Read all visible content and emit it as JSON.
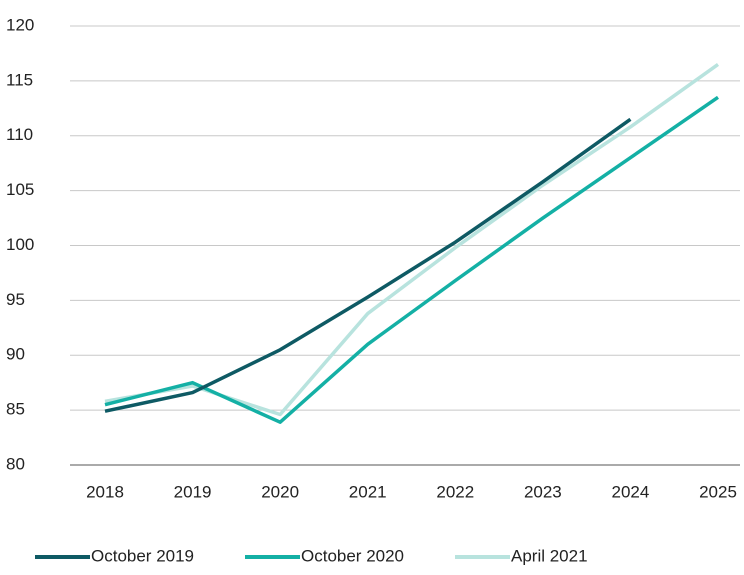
{
  "chart_data": {
    "type": "line",
    "categories": [
      "2018",
      "2019",
      "2020",
      "2021",
      "2022",
      "2023",
      "2024",
      "2025"
    ],
    "series": [
      {
        "name": "October 2019",
        "color": "#0e5a64",
        "values": [
          84.9,
          86.6,
          90.5,
          95.3,
          100.3,
          105.8,
          111.5,
          null
        ]
      },
      {
        "name": "October 2020",
        "color": "#14b0a5",
        "values": [
          85.5,
          87.5,
          83.9,
          91.0,
          96.8,
          102.5,
          108.0,
          113.5
        ]
      },
      {
        "name": "April 2021",
        "color": "#b8e3de",
        "values": [
          85.8,
          87.2,
          84.6,
          93.8,
          99.8,
          105.5,
          110.8,
          116.5
        ]
      }
    ],
    "ylim": [
      80,
      120
    ],
    "yticks": [
      80,
      85,
      90,
      95,
      100,
      105,
      110,
      115,
      120
    ],
    "grid": true,
    "legend": "bottom"
  }
}
